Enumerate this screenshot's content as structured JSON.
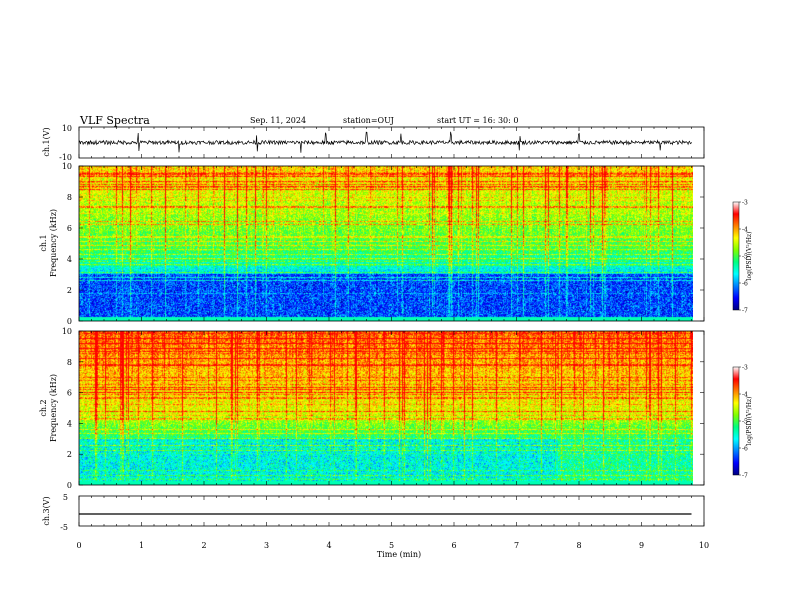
{
  "header": {
    "title": "VLF Spectra",
    "date": "Sep. 11, 2024",
    "station": "station=OUJ",
    "start": "start  UT =   16: 30: 0"
  },
  "colors": {
    "spectrogram_scale": [
      "#000080",
      "#0000ff",
      "#0080ff",
      "#00ffff",
      "#00ff80",
      "#80ff00",
      "#ffff00",
      "#ff8000",
      "#ff0000",
      "#ffffff"
    ]
  },
  "chart_data": [
    {
      "type": "line",
      "panel": "ch1-waveform",
      "ylabel": "ch.1(V)",
      "ylim": [
        -10,
        10
      ],
      "yticks": [
        "10",
        "-10"
      ],
      "xlim": [
        0,
        10
      ],
      "baseline": 0,
      "noise_amplitude": 2.5,
      "spike_times": [
        0.95,
        1.6,
        2.85,
        3.55,
        3.95,
        4.6,
        5.15,
        5.95,
        7.05,
        8.0,
        9.3
      ]
    },
    {
      "type": "heatmap",
      "panel": "ch1-spectrogram",
      "ylabel": "ch.1 Frequency (kHz)",
      "ylim": [
        0,
        10
      ],
      "yticks": [
        "0",
        "2",
        "4",
        "6",
        "8",
        "10"
      ],
      "xlim": [
        0,
        9.8
      ],
      "colorbar": {
        "label": "log(PSD)(V²/Hz)",
        "range": [
          -7,
          -3
        ],
        "ticks": [
          "-3",
          "-4",
          "-5",
          "-6",
          "-7"
        ]
      }
    },
    {
      "type": "heatmap",
      "panel": "ch2-spectrogram",
      "ylabel": "ch.2 Frequency (kHz)",
      "ylim": [
        0,
        10
      ],
      "yticks": [
        "0",
        "2",
        "4",
        "6",
        "8",
        "10"
      ],
      "xlim": [
        0,
        9.8
      ],
      "colorbar": {
        "label": "log(PSD)(V²/Hz)",
        "range": [
          -7,
          -3
        ],
        "ticks": [
          "-3",
          "-4",
          "-5",
          "-6",
          "-7"
        ]
      }
    },
    {
      "type": "line",
      "panel": "ch3-waveform",
      "ylabel": "ch.3(V)",
      "ylim": [
        -5,
        5
      ],
      "yticks": [
        "5",
        "0",
        "-5"
      ],
      "xlim": [
        0,
        10
      ],
      "x": [
        0,
        9.8
      ],
      "y": [
        -1,
        -1
      ]
    }
  ],
  "xaxis": {
    "label": "Time  (min)",
    "range": [
      0,
      10
    ],
    "ticks": [
      "0",
      "1",
      "2",
      "3",
      "4",
      "5",
      "6",
      "7",
      "8",
      "9",
      "10"
    ]
  }
}
